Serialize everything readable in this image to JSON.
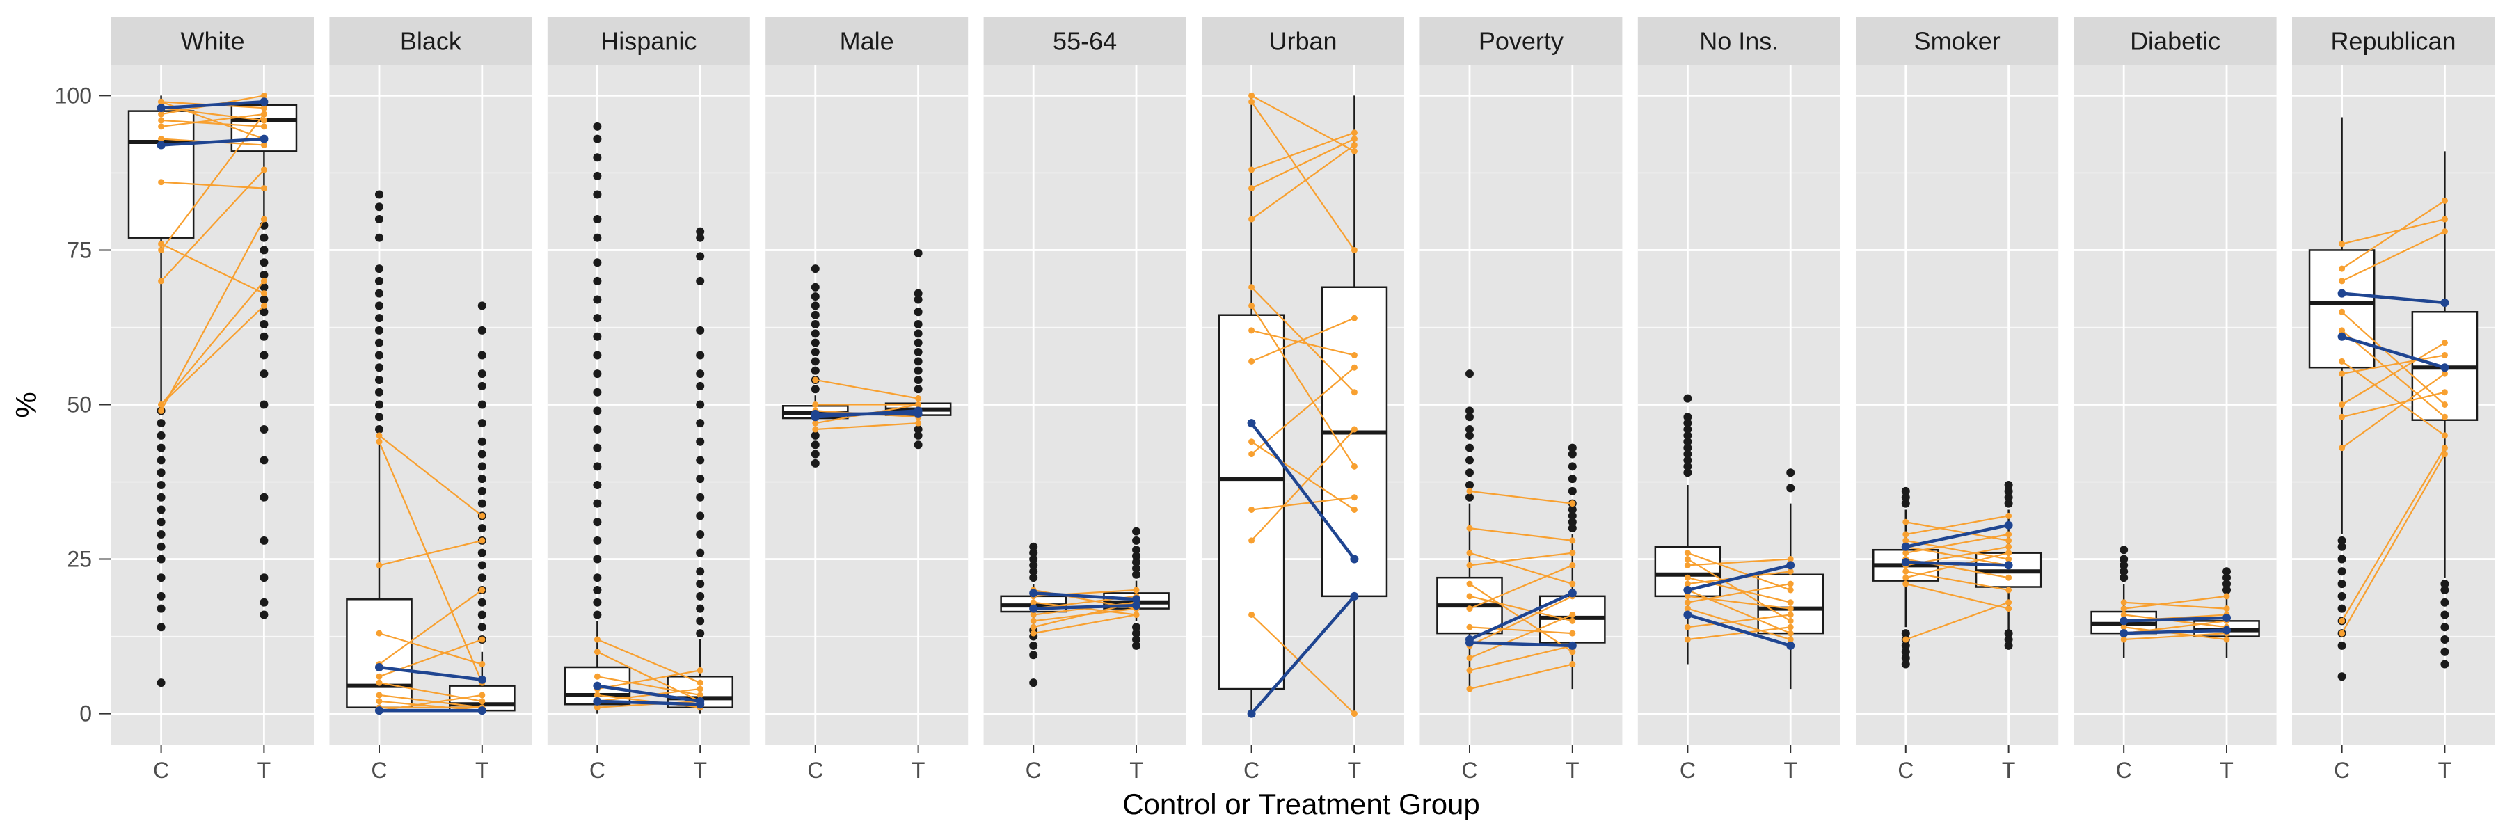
{
  "chart_data": {
    "type": "boxplot",
    "ylabel": "%",
    "xlabel": "Control or Treatment Group",
    "ylim": [
      -5,
      105
    ],
    "yticks": [
      0,
      25,
      50,
      75,
      100
    ],
    "group_labels": [
      "C",
      "T"
    ],
    "colors": {
      "panel_bg": "#e5e5e5",
      "strip_bg": "#d9d9d9",
      "grid": "#ffffff",
      "box_fill": "#ffffff",
      "box_line": "#1a1a1a",
      "outlier": "#1a1a1a",
      "pair_line": "#f8a030",
      "highlight_line": "#1f4591"
    },
    "facets": [
      {
        "name": "White",
        "C": {
          "q1": 77,
          "median": 92.5,
          "q3": 97.5,
          "whisker_low": 50,
          "whisker_high": 100,
          "outliers": [
            5,
            14,
            17,
            19,
            22,
            25,
            27,
            29,
            31,
            33,
            35,
            37,
            39,
            41,
            43,
            45,
            47,
            49
          ]
        },
        "T": {
          "q1": 91,
          "median": 96,
          "q3": 98.5,
          "whisker_low": 80,
          "whisker_high": 100,
          "outliers": [
            16,
            18,
            22,
            28,
            35,
            41,
            46,
            50,
            55,
            58,
            61,
            63,
            65,
            67,
            69,
            71,
            73,
            75,
            77,
            79
          ]
        },
        "pairs": [
          [
            99,
            98
          ],
          [
            99,
            93
          ],
          [
            98,
            96
          ],
          [
            97,
            100
          ],
          [
            96,
            95
          ],
          [
            95,
            97
          ],
          [
            93,
            92
          ],
          [
            86,
            85
          ],
          [
            76,
            68
          ],
          [
            75,
            97
          ],
          [
            70,
            88
          ],
          [
            50,
            70
          ],
          [
            50,
            66
          ],
          [
            49,
            80
          ]
        ],
        "highlight_pairs": [
          [
            98,
            99
          ],
          [
            92,
            93
          ]
        ]
      },
      {
        "name": "Black",
        "C": {
          "q1": 1,
          "median": 4.5,
          "q3": 18.5,
          "whisker_low": 0,
          "whisker_high": 45,
          "outliers": [
            46,
            48,
            50,
            52,
            54,
            56,
            58,
            60,
            62,
            64,
            66,
            68,
            70,
            72,
            77,
            80,
            82,
            84
          ]
        },
        "T": {
          "q1": 0.5,
          "median": 1.5,
          "q3": 4.5,
          "whisker_low": 0,
          "whisker_high": 10,
          "outliers": [
            12,
            14,
            16,
            18,
            20,
            22,
            24,
            26,
            28,
            30,
            32,
            34,
            36,
            38,
            40,
            42,
            44,
            47,
            50,
            53,
            55,
            58,
            62,
            66
          ]
        },
        "pairs": [
          [
            45,
            32
          ],
          [
            44,
            5
          ],
          [
            24,
            28
          ],
          [
            13,
            8
          ],
          [
            8,
            20
          ],
          [
            6,
            12
          ],
          [
            5,
            2
          ],
          [
            3,
            1
          ],
          [
            2,
            0.5
          ],
          [
            1,
            1
          ],
          [
            0.5,
            3
          ]
        ],
        "highlight_pairs": [
          [
            7.5,
            5.5
          ],
          [
            0.5,
            0.5
          ]
        ]
      },
      {
        "name": "Hispanic",
        "C": {
          "q1": 1.5,
          "median": 3,
          "q3": 7.5,
          "whisker_low": 0,
          "whisker_high": 15,
          "outliers": [
            16,
            18,
            20,
            22,
            25,
            28,
            31,
            34,
            37,
            40,
            43,
            46,
            49,
            52,
            55,
            58,
            61,
            64,
            67,
            70,
            73,
            77,
            80,
            84,
            87,
            90,
            93,
            95
          ]
        },
        "T": {
          "q1": 1,
          "median": 2.5,
          "q3": 6,
          "whisker_low": 0,
          "whisker_high": 12,
          "outliers": [
            13,
            15,
            17,
            19,
            21,
            23,
            26,
            29,
            32,
            35,
            38,
            41,
            44,
            47,
            50,
            53,
            55,
            58,
            62,
            70,
            74,
            77,
            78
          ]
        },
        "pairs": [
          [
            12,
            5
          ],
          [
            10,
            2
          ],
          [
            6,
            3
          ],
          [
            4,
            7
          ],
          [
            3,
            1
          ],
          [
            2,
            4
          ],
          [
            1,
            2
          ]
        ],
        "highlight_pairs": [
          [
            4.5,
            2
          ],
          [
            2,
            1.5
          ]
        ]
      },
      {
        "name": "Male",
        "C": {
          "q1": 47.8,
          "median": 48.7,
          "q3": 49.8,
          "whisker_low": 46.5,
          "whisker_high": 51.5,
          "outliers": [
            40.5,
            42,
            43.5,
            45,
            52.5,
            54,
            55.5,
            57,
            58.5,
            60,
            61.5,
            63,
            64.5,
            66,
            67.5,
            69,
            72
          ]
        },
        "T": {
          "q1": 48.3,
          "median": 49.2,
          "q3": 50.2,
          "whisker_low": 47,
          "whisker_high": 51.5,
          "outliers": [
            43.5,
            45,
            46,
            52.5,
            54,
            55.5,
            57,
            58.5,
            60,
            61.5,
            63,
            65,
            67,
            68,
            74.5
          ]
        },
        "pairs": [
          [
            54,
            51
          ],
          [
            50,
            50
          ],
          [
            49,
            48
          ],
          [
            48,
            49
          ],
          [
            47,
            50
          ],
          [
            46,
            47
          ]
        ],
        "highlight_pairs": [
          [
            48.5,
            48.5
          ],
          [
            48,
            49
          ]
        ]
      },
      {
        "name": "55-64",
        "C": {
          "q1": 16.5,
          "median": 17.5,
          "q3": 19,
          "whisker_low": 14.5,
          "whisker_high": 21,
          "outliers": [
            5,
            9.5,
            11,
            12.5,
            13.5,
            22,
            23,
            24,
            25,
            26,
            27
          ]
        },
        "T": {
          "q1": 17,
          "median": 18,
          "q3": 19.5,
          "whisker_low": 15,
          "whisker_high": 21.5,
          "outliers": [
            11,
            12,
            13,
            14,
            22.5,
            23.5,
            24.5,
            25.5,
            26.5,
            28,
            29.5
          ]
        },
        "pairs": [
          [
            20,
            17
          ],
          [
            19,
            20
          ],
          [
            18,
            16
          ],
          [
            17,
            19
          ],
          [
            16,
            18
          ],
          [
            15,
            17
          ],
          [
            14,
            18
          ],
          [
            13,
            16
          ]
        ],
        "highlight_pairs": [
          [
            19.5,
            18.5
          ],
          [
            17,
            17.5
          ]
        ]
      },
      {
        "name": "Urban",
        "C": {
          "q1": 4,
          "median": 38,
          "q3": 64.5,
          "whisker_low": 0,
          "whisker_high": 100,
          "outliers": []
        },
        "T": {
          "q1": 19,
          "median": 45.5,
          "q3": 69,
          "whisker_low": 0,
          "whisker_high": 100,
          "outliers": []
        },
        "pairs": [
          [
            100,
            91
          ],
          [
            99,
            75
          ],
          [
            88,
            94
          ],
          [
            85,
            93
          ],
          [
            80,
            92
          ],
          [
            69,
            52
          ],
          [
            66,
            40
          ],
          [
            62,
            58
          ],
          [
            57,
            64
          ],
          [
            44,
            33
          ],
          [
            42,
            56
          ],
          [
            33,
            35
          ],
          [
            28,
            46
          ],
          [
            16,
            0
          ],
          [
            0,
            19
          ]
        ],
        "highlight_pairs": [
          [
            47,
            25
          ],
          [
            0,
            19
          ]
        ]
      },
      {
        "name": "Poverty",
        "C": {
          "q1": 13,
          "median": 17.5,
          "q3": 22,
          "whisker_low": 4,
          "whisker_high": 34,
          "outliers": [
            35,
            37,
            39,
            41,
            43,
            45,
            46,
            48,
            49,
            55
          ]
        },
        "T": {
          "q1": 11.5,
          "median": 15.5,
          "q3": 19,
          "whisker_low": 4,
          "whisker_high": 29,
          "outliers": [
            30,
            31,
            32,
            33,
            34,
            36,
            38,
            40,
            42,
            43
          ]
        },
        "pairs": [
          [
            36,
            34
          ],
          [
            30,
            28
          ],
          [
            26,
            21
          ],
          [
            24,
            26
          ],
          [
            21,
            10
          ],
          [
            19,
            15
          ],
          [
            17,
            24
          ],
          [
            14,
            13
          ],
          [
            11,
            19
          ],
          [
            9,
            16
          ],
          [
            7,
            11
          ],
          [
            4,
            8
          ]
        ],
        "highlight_pairs": [
          [
            12,
            19.5
          ],
          [
            11.5,
            11
          ]
        ]
      },
      {
        "name": "No Ins.",
        "C": {
          "q1": 19,
          "median": 22.5,
          "q3": 27,
          "whisker_low": 8,
          "whisker_high": 37,
          "outliers": [
            39,
            40,
            41,
            42,
            43,
            44,
            45,
            46,
            47,
            48,
            51
          ]
        },
        "T": {
          "q1": 13,
          "median": 17,
          "q3": 22.5,
          "whisker_low": 4,
          "whisker_high": 34,
          "outliers": [
            36.5,
            39
          ]
        },
        "pairs": [
          [
            26,
            20
          ],
          [
            25,
            15
          ],
          [
            24,
            25
          ],
          [
            22,
            18
          ],
          [
            21,
            23
          ],
          [
            20,
            13
          ],
          [
            19,
            17
          ],
          [
            18,
            21
          ],
          [
            17,
            12
          ],
          [
            14,
            16
          ],
          [
            12,
            14
          ]
        ],
        "highlight_pairs": [
          [
            20,
            24
          ],
          [
            16,
            11
          ]
        ]
      },
      {
        "name": "Smoker",
        "C": {
          "q1": 21.5,
          "median": 24,
          "q3": 26.5,
          "whisker_low": 14,
          "whisker_high": 33,
          "outliers": [
            8,
            9,
            10,
            11,
            12,
            13,
            34,
            35,
            36
          ]
        },
        "T": {
          "q1": 20.5,
          "median": 23,
          "q3": 26,
          "whisker_low": 12,
          "whisker_high": 33,
          "outliers": [
            11,
            12,
            13,
            34,
            35,
            36,
            37
          ]
        },
        "pairs": [
          [
            31,
            28
          ],
          [
            29,
            32
          ],
          [
            28,
            25
          ],
          [
            27,
            24
          ],
          [
            26,
            29
          ],
          [
            25,
            22
          ],
          [
            24,
            27
          ],
          [
            23,
            20
          ],
          [
            22,
            26
          ],
          [
            21,
            17
          ],
          [
            12,
            18
          ]
        ],
        "highlight_pairs": [
          [
            27,
            30.5
          ],
          [
            24.5,
            24
          ]
        ]
      },
      {
        "name": "Diabetic",
        "C": {
          "q1": 13,
          "median": 14.5,
          "q3": 16.5,
          "whisker_low": 9,
          "whisker_high": 21,
          "outliers": [
            22,
            23,
            24,
            25,
            26.5
          ]
        },
        "T": {
          "q1": 12.5,
          "median": 13.5,
          "q3": 15,
          "whisker_low": 9,
          "whisker_high": 19,
          "outliers": [
            20,
            21,
            22,
            23
          ]
        },
        "pairs": [
          [
            18,
            17
          ],
          [
            17,
            19
          ],
          [
            16,
            14
          ],
          [
            15,
            16
          ],
          [
            14,
            12
          ],
          [
            13,
            15
          ],
          [
            12,
            13
          ]
        ],
        "highlight_pairs": [
          [
            15,
            15.5
          ],
          [
            13,
            13.5
          ]
        ]
      },
      {
        "name": "Republican",
        "C": {
          "q1": 56,
          "median": 66.5,
          "q3": 75,
          "whisker_low": 29,
          "whisker_high": 96.5,
          "outliers": [
            6,
            11,
            13,
            15,
            17,
            19,
            21,
            23,
            25,
            27,
            28
          ]
        },
        "T": {
          "q1": 47.5,
          "median": 56,
          "q3": 65,
          "whisker_low": 22,
          "whisker_high": 91,
          "outliers": [
            8,
            10,
            12,
            14,
            16,
            18,
            20,
            21
          ]
        },
        "pairs": [
          [
            76,
            80
          ],
          [
            72,
            83
          ],
          [
            70,
            78
          ],
          [
            65,
            50
          ],
          [
            62,
            48
          ],
          [
            57,
            45
          ],
          [
            55,
            58
          ],
          [
            50,
            60
          ],
          [
            48,
            52
          ],
          [
            43,
            55
          ],
          [
            15,
            43
          ],
          [
            13,
            42
          ]
        ],
        "highlight_pairs": [
          [
            68,
            66.5
          ],
          [
            61,
            56
          ]
        ]
      }
    ]
  }
}
